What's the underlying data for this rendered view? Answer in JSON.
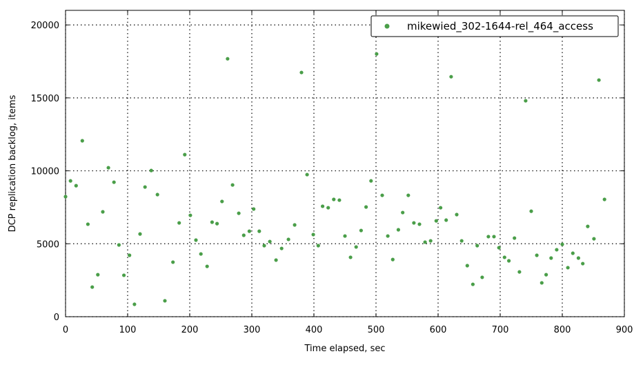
{
  "chart_data": {
    "type": "scatter",
    "xlabel": "Time elapsed, sec",
    "ylabel": "DCP replication backlog, items",
    "xlim": [
      0,
      900
    ],
    "ylim": [
      0,
      21000
    ],
    "xticks": [
      0,
      100,
      200,
      300,
      400,
      500,
      600,
      700,
      800,
      900
    ],
    "yticks": [
      0,
      5000,
      10000,
      15000,
      20000
    ],
    "grid": true,
    "legend": "upper right",
    "x": [
      0,
      8,
      17,
      27,
      36,
      43,
      52,
      60,
      69,
      78,
      86,
      94,
      103,
      111,
      120,
      128,
      138,
      148,
      160,
      173,
      183,
      192,
      201,
      210,
      218,
      228,
      236,
      244,
      252,
      261,
      269,
      279,
      287,
      296,
      303,
      312,
      320,
      329,
      339,
      348,
      359,
      369,
      380,
      389,
      399,
      407,
      414,
      423,
      432,
      441,
      450,
      459,
      468,
      476,
      484,
      492,
      501,
      510,
      519,
      527,
      536,
      543,
      552,
      561,
      570,
      579,
      588,
      597,
      604,
      613,
      621,
      630,
      638,
      647,
      656,
      663,
      671,
      681,
      690,
      698,
      707,
      714,
      723,
      731,
      741,
      750,
      759,
      767,
      774,
      782,
      791,
      800,
      809,
      817,
      826,
      833,
      841,
      851,
      859,
      868
    ],
    "series": [
      {
        "name": "mikewied_302-1644-rel_464_access",
        "color": "#4a9e49",
        "values": [
          8230,
          9310,
          8980,
          12060,
          6340,
          2030,
          2880,
          7190,
          10210,
          9220,
          4920,
          2840,
          4210,
          850,
          5670,
          8890,
          10020,
          8370,
          1090,
          3740,
          6430,
          11110,
          6950,
          5250,
          4300,
          3450,
          6480,
          6380,
          7900,
          17680,
          9030,
          7090,
          5580,
          5860,
          7380,
          5860,
          4870,
          5150,
          3880,
          4680,
          5300,
          6290,
          16740,
          9740,
          5630,
          4870,
          7570,
          7470,
          8040,
          7990,
          5530,
          4070,
          4780,
          5910,
          7520,
          9310,
          18010,
          8320,
          5530,
          3920,
          5960,
          7140,
          8320,
          6430,
          6340,
          5110,
          5200,
          6570,
          7470,
          6620,
          16450,
          7000,
          5200,
          3500,
          2220,
          4870,
          2700,
          5490,
          5490,
          4730,
          4070,
          3830,
          5390,
          3070,
          14800,
          7230,
          4210,
          2320,
          2880,
          4020,
          4590,
          4960,
          3360,
          4350,
          4020,
          3640,
          6190,
          5340,
          16220,
          8040
        ]
      }
    ]
  }
}
